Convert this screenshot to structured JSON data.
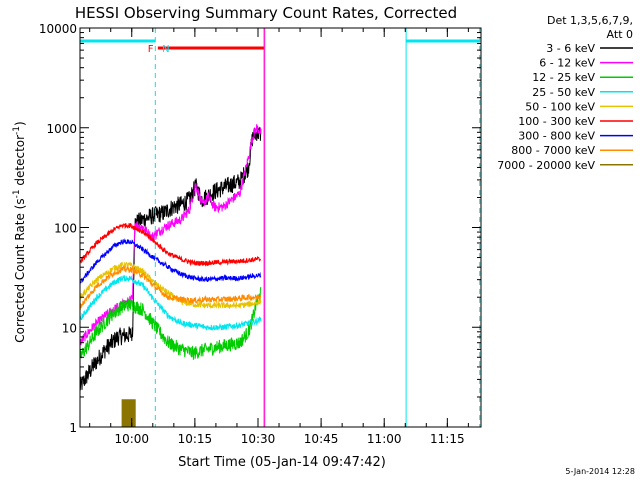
{
  "chart_data": {
    "type": "line",
    "title": "HESSI Observing Summary Count Rates, Corrected",
    "xlabel": "Start Time (05-Jan-14 09:47:42)",
    "ylabel_parts": [
      "Corrected Count Rate (s",
      "-1",
      " detector",
      "-1",
      ")"
    ],
    "yscale": "log",
    "ylim": [
      1,
      10000
    ],
    "xlim_minutes": [
      0,
      95.3
    ],
    "x_ticks": [
      {
        "m": 12.3,
        "label": "10:00"
      },
      {
        "m": 27.3,
        "label": "10:15"
      },
      {
        "m": 42.3,
        "label": "10:30"
      },
      {
        "m": 57.3,
        "label": "10:45"
      },
      {
        "m": 72.3,
        "label": "11:00"
      },
      {
        "m": 87.3,
        "label": "11:15"
      }
    ],
    "y_ticks": [
      {
        "v": 1,
        "label": "1"
      },
      {
        "v": 10,
        "label": "10"
      },
      {
        "v": 100,
        "label": "100"
      },
      {
        "v": 1000,
        "label": "1000"
      },
      {
        "v": 10000,
        "label": "10000"
      }
    ],
    "legend_header": [
      "Det 1,3,5,6,7,9,",
      "Att 0"
    ],
    "legend": [
      {
        "label": "3 - 6 keV",
        "color": "#000000"
      },
      {
        "label": "6 - 12 keV",
        "color": "#ff00ff"
      },
      {
        "label": "12 - 25 keV",
        "color": "#00cc00"
      },
      {
        "label": "25 - 50 keV",
        "color": "#00e5ee"
      },
      {
        "label": "50 - 100 keV",
        "color": "#e6c200"
      },
      {
        "label": "100 - 300 keV",
        "color": "#ff0000"
      },
      {
        "label": "300 - 800 keV",
        "color": "#0000ff"
      },
      {
        "label": "800 - 7000 keV",
        "color": "#ff8c00"
      },
      {
        "label": "7000 - 20000 keV",
        "color": "#8b7500"
      }
    ],
    "series": [
      {
        "key": "k3_6",
        "color": "#000000",
        "noise": 0.09,
        "x": [
          0,
          3,
          6,
          9,
          12.5,
          13,
          15,
          17,
          20,
          22,
          24,
          26,
          27.5,
          29,
          30.5,
          32,
          34,
          36,
          38,
          40,
          41,
          42,
          43
        ],
        "y": [
          2.5,
          4,
          6,
          8,
          8.5,
          110,
          120,
          130,
          140,
          160,
          170,
          190,
          260,
          190,
          210,
          230,
          250,
          270,
          290,
          400,
          800,
          900,
          850
        ]
      },
      {
        "key": "k6_12",
        "color": "#ff00ff",
        "noise": 0.05,
        "x": [
          0,
          3,
          6,
          9,
          12.5,
          13,
          15,
          17,
          20,
          22,
          24,
          26,
          27.5,
          29,
          30.5,
          32,
          34,
          36,
          38,
          40,
          41,
          42,
          43
        ],
        "y": [
          7,
          10,
          13,
          16,
          19,
          110,
          100,
          80,
          100,
          110,
          120,
          150,
          270,
          170,
          200,
          160,
          160,
          190,
          220,
          500,
          800,
          1000,
          900
        ]
      },
      {
        "key": "k12_25",
        "color": "#00cc00",
        "noise": 0.07,
        "x": [
          0,
          4,
          8,
          10,
          12,
          15,
          18,
          21,
          24,
          27,
          30,
          34,
          38,
          40,
          41,
          42,
          43
        ],
        "y": [
          5,
          9,
          14,
          16,
          17,
          15,
          10,
          7,
          6,
          5.5,
          6,
          6.5,
          7,
          9,
          12,
          18,
          22
        ]
      },
      {
        "key": "k25_50",
        "color": "#00e5ee",
        "noise": 0.03,
        "x": [
          0,
          4,
          8,
          10,
          12,
          15,
          18,
          21,
          24,
          27,
          30,
          34,
          38,
          40,
          42,
          43
        ],
        "y": [
          12,
          20,
          28,
          31,
          31,
          26,
          18,
          13,
          11,
          10.5,
          10,
          10,
          10.5,
          11,
          11.5,
          12
        ]
      },
      {
        "key": "k50_100",
        "color": "#e6c200",
        "noise": 0.03,
        "x": [
          0,
          4,
          8,
          10,
          12,
          15,
          18,
          21,
          24,
          27,
          30,
          34,
          38,
          40,
          42,
          43
        ],
        "y": [
          20,
          30,
          39,
          42,
          42,
          36,
          27,
          22,
          18,
          17,
          16.5,
          16.5,
          16.5,
          17,
          17.5,
          18
        ]
      },
      {
        "key": "k100_300",
        "color": "#ff0000",
        "noise": 0.025,
        "x": [
          0,
          4,
          8,
          10,
          12,
          15,
          18,
          21,
          24,
          27,
          30,
          34,
          38,
          40,
          42,
          43
        ],
        "y": [
          45,
          70,
          95,
          105,
          105,
          90,
          70,
          55,
          48,
          44,
          44,
          45,
          46,
          47,
          48,
          48
        ]
      },
      {
        "key": "k300_800",
        "color": "#0000ff",
        "noise": 0.025,
        "x": [
          0,
          4,
          8,
          10,
          12,
          15,
          18,
          21,
          24,
          27,
          30,
          34,
          38,
          40,
          42,
          43
        ],
        "y": [
          28,
          45,
          65,
          72,
          72,
          60,
          48,
          40,
          34,
          31,
          30,
          31,
          31,
          32,
          33,
          33
        ]
      },
      {
        "key": "k800_7000",
        "color": "#ff8c00",
        "noise": 0.03,
        "x": [
          0,
          4,
          8,
          10,
          12,
          15,
          18,
          21,
          24,
          27,
          30,
          34,
          38,
          40,
          42,
          43
        ],
        "y": [
          16,
          26,
          35,
          38,
          38,
          33,
          25,
          20,
          19,
          18.5,
          19,
          19,
          19.5,
          20,
          20,
          20.5
        ]
      },
      {
        "key": "k7000_20000",
        "color": "#8b7500",
        "noise": 0.0,
        "x": [
          10,
          10.4,
          10.8,
          11.2,
          11.6,
          12,
          12.4,
          12.8,
          13.2
        ],
        "y": [
          1.9,
          1.9,
          1.9,
          1.9,
          1.9,
          1.9,
          1.9,
          1.9,
          1.9
        ]
      }
    ],
    "cyan_bars": [
      {
        "from": 0,
        "to": 17.9
      },
      {
        "from": 77.5,
        "to": 95
      }
    ],
    "red_bar": {
      "from": 18.5,
      "to": 43.7
    },
    "flag_labels": [
      {
        "text": "F",
        "m": 16.8,
        "color": "#ff0000"
      },
      {
        "text": "N",
        "m": 20.4,
        "color": "#00e5ee"
      }
    ],
    "vlines": [
      {
        "m": 0,
        "color": "#00e5ee",
        "dashed": false
      },
      {
        "m": 17.9,
        "color": "#00e5ee",
        "dashed": true
      },
      {
        "m": 77.5,
        "color": "#00e5ee",
        "dashed": false
      },
      {
        "m": 95,
        "color": "#00e5ee",
        "dashed": true
      },
      {
        "m": 43.7,
        "color": "#ff8c00",
        "dashed": false
      },
      {
        "m": 43.9,
        "color": "#ff00ff",
        "dashed": false
      }
    ]
  },
  "footer_date": "5-Jan-2014 12:28"
}
